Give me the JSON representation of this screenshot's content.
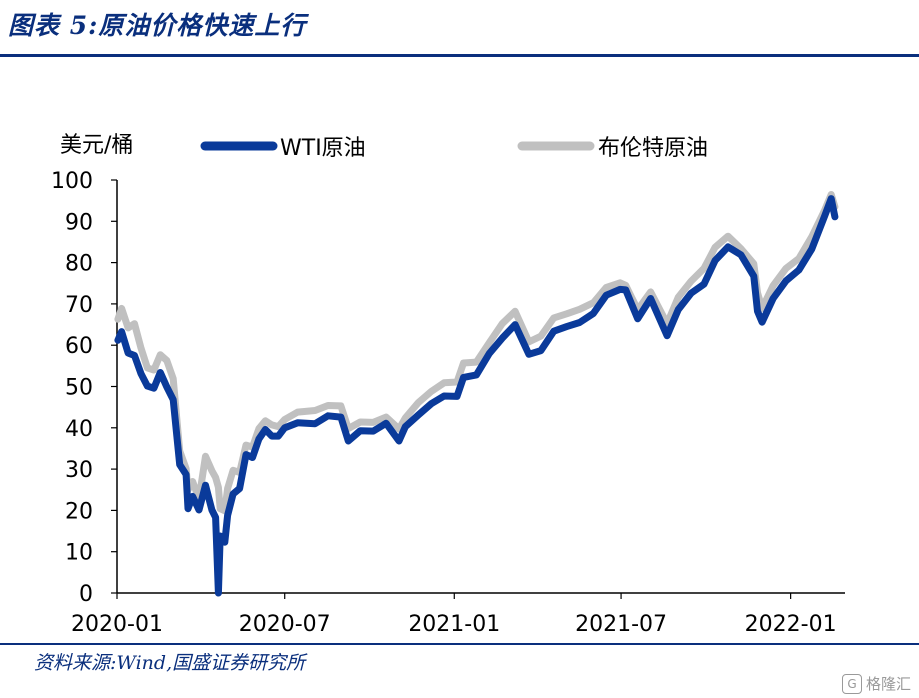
{
  "figure_title": "图表 5:原油价格快速上行",
  "source_note": "资料来源:Wind,国盛证券研究所",
  "watermark": "格隆汇",
  "chart_data": {
    "type": "line",
    "yunit": "美元/桶",
    "ylim": [
      0,
      100
    ],
    "yticks": [
      0,
      10,
      20,
      30,
      40,
      50,
      60,
      70,
      80,
      90,
      100
    ],
    "xlim": [
      "2020-01-01",
      "2022-03-01"
    ],
    "xticks": [
      "2020-01",
      "2020-07",
      "2021-01",
      "2021-07",
      "2022-01"
    ],
    "legend_position": "top",
    "grid": false,
    "series": [
      {
        "name": "WTI原油",
        "color": "#0a3a9a",
        "points": [
          [
            "2020-01-02",
            61.2
          ],
          [
            "2020-01-06",
            63.3
          ],
          [
            "2020-01-13",
            58.1
          ],
          [
            "2020-01-20",
            57.5
          ],
          [
            "2020-01-27",
            53.1
          ],
          [
            "2020-02-03",
            50.1
          ],
          [
            "2020-02-10",
            49.6
          ],
          [
            "2020-02-17",
            53.4
          ],
          [
            "2020-02-24",
            49.9
          ],
          [
            "2020-03-02",
            46.8
          ],
          [
            "2020-03-09",
            31.1
          ],
          [
            "2020-03-16",
            28.7
          ],
          [
            "2020-03-18",
            20.4
          ],
          [
            "2020-03-23",
            23.4
          ],
          [
            "2020-03-30",
            20.1
          ],
          [
            "2020-04-06",
            26.1
          ],
          [
            "2020-04-13",
            20.1
          ],
          [
            "2020-04-17",
            18.3
          ],
          [
            "2020-04-20",
            0.0
          ],
          [
            "2020-04-22",
            13.8
          ],
          [
            "2020-04-27",
            12.3
          ],
          [
            "2020-04-30",
            18.8
          ],
          [
            "2020-05-06",
            24.0
          ],
          [
            "2020-05-13",
            25.3
          ],
          [
            "2020-05-20",
            33.5
          ],
          [
            "2020-05-27",
            32.8
          ],
          [
            "2020-06-03",
            37.3
          ],
          [
            "2020-06-10",
            39.6
          ],
          [
            "2020-06-17",
            38.0
          ],
          [
            "2020-06-24",
            38.0
          ],
          [
            "2020-07-01",
            40.0
          ],
          [
            "2020-07-15",
            41.2
          ],
          [
            "2020-08-03",
            41.0
          ],
          [
            "2020-08-17",
            42.9
          ],
          [
            "2020-08-31",
            42.6
          ],
          [
            "2020-09-08",
            36.8
          ],
          [
            "2020-09-21",
            39.3
          ],
          [
            "2020-10-05",
            39.2
          ],
          [
            "2020-10-19",
            41.1
          ],
          [
            "2020-11-02",
            36.8
          ],
          [
            "2020-11-09",
            40.3
          ],
          [
            "2020-11-23",
            43.1
          ],
          [
            "2020-12-07",
            45.8
          ],
          [
            "2020-12-21",
            47.7
          ],
          [
            "2021-01-04",
            47.6
          ],
          [
            "2021-01-11",
            52.2
          ],
          [
            "2021-01-25",
            52.8
          ],
          [
            "2021-02-08",
            58.0
          ],
          [
            "2021-02-22",
            61.7
          ],
          [
            "2021-03-08",
            65.0
          ],
          [
            "2021-03-23",
            57.8
          ],
          [
            "2021-04-05",
            58.7
          ],
          [
            "2021-04-19",
            63.4
          ],
          [
            "2021-05-03",
            64.5
          ],
          [
            "2021-05-17",
            65.5
          ],
          [
            "2021-06-01",
            67.7
          ],
          [
            "2021-06-15",
            72.1
          ],
          [
            "2021-06-30",
            73.5
          ],
          [
            "2021-07-06",
            73.4
          ],
          [
            "2021-07-19",
            66.4
          ],
          [
            "2021-08-02",
            71.3
          ],
          [
            "2021-08-20",
            62.3
          ],
          [
            "2021-09-01",
            68.6
          ],
          [
            "2021-09-15",
            72.6
          ],
          [
            "2021-09-29",
            74.8
          ],
          [
            "2021-10-11",
            80.5
          ],
          [
            "2021-10-25",
            83.8
          ],
          [
            "2021-11-08",
            81.9
          ],
          [
            "2021-11-22",
            76.7
          ],
          [
            "2021-11-26",
            68.2
          ],
          [
            "2021-12-01",
            65.6
          ],
          [
            "2021-12-13",
            71.3
          ],
          [
            "2021-12-27",
            75.6
          ],
          [
            "2022-01-10",
            78.2
          ],
          [
            "2022-01-24",
            83.3
          ],
          [
            "2022-02-07",
            91.3
          ],
          [
            "2022-02-14",
            95.5
          ],
          [
            "2022-02-18",
            91.1
          ]
        ]
      },
      {
        "name": "布伦特原油",
        "color": "#c0c0c0",
        "points": [
          [
            "2020-01-02",
            66.3
          ],
          [
            "2020-01-06",
            68.9
          ],
          [
            "2020-01-13",
            64.2
          ],
          [
            "2020-01-20",
            65.2
          ],
          [
            "2020-01-27",
            59.3
          ],
          [
            "2020-02-03",
            54.5
          ],
          [
            "2020-02-10",
            54.0
          ],
          [
            "2020-02-17",
            57.7
          ],
          [
            "2020-02-24",
            56.3
          ],
          [
            "2020-03-02",
            51.9
          ],
          [
            "2020-03-09",
            34.4
          ],
          [
            "2020-03-16",
            30.1
          ],
          [
            "2020-03-18",
            25.0
          ],
          [
            "2020-03-23",
            27.0
          ],
          [
            "2020-03-30",
            22.8
          ],
          [
            "2020-04-06",
            33.1
          ],
          [
            "2020-04-13",
            29.6
          ],
          [
            "2020-04-17",
            28.0
          ],
          [
            "2020-04-20",
            25.6
          ],
          [
            "2020-04-22",
            20.4
          ],
          [
            "2020-04-27",
            19.9
          ],
          [
            "2020-04-30",
            25.3
          ],
          [
            "2020-05-06",
            29.7
          ],
          [
            "2020-05-13",
            29.2
          ],
          [
            "2020-05-20",
            35.8
          ],
          [
            "2020-05-27",
            35.3
          ],
          [
            "2020-06-03",
            39.8
          ],
          [
            "2020-06-10",
            41.7
          ],
          [
            "2020-06-17",
            40.7
          ],
          [
            "2020-06-24",
            40.3
          ],
          [
            "2020-07-01",
            42.0
          ],
          [
            "2020-07-15",
            43.8
          ],
          [
            "2020-08-03",
            44.2
          ],
          [
            "2020-08-17",
            45.4
          ],
          [
            "2020-08-31",
            45.3
          ],
          [
            "2020-09-08",
            39.8
          ],
          [
            "2020-09-21",
            41.4
          ],
          [
            "2020-10-05",
            41.3
          ],
          [
            "2020-10-19",
            42.6
          ],
          [
            "2020-11-02",
            39.7
          ],
          [
            "2020-11-09",
            42.4
          ],
          [
            "2020-11-23",
            46.1
          ],
          [
            "2020-12-07",
            48.8
          ],
          [
            "2020-12-21",
            50.9
          ],
          [
            "2021-01-04",
            51.1
          ],
          [
            "2021-01-11",
            55.7
          ],
          [
            "2021-01-25",
            55.9
          ],
          [
            "2021-02-08",
            60.6
          ],
          [
            "2021-02-22",
            65.2
          ],
          [
            "2021-03-08",
            68.2
          ],
          [
            "2021-03-23",
            60.8
          ],
          [
            "2021-04-05",
            62.2
          ],
          [
            "2021-04-19",
            66.6
          ],
          [
            "2021-05-03",
            67.6
          ],
          [
            "2021-05-17",
            68.7
          ],
          [
            "2021-06-01",
            70.3
          ],
          [
            "2021-06-15",
            74.0
          ],
          [
            "2021-06-30",
            75.1
          ],
          [
            "2021-07-06",
            74.5
          ],
          [
            "2021-07-19",
            68.6
          ],
          [
            "2021-08-02",
            72.9
          ],
          [
            "2021-08-20",
            65.2
          ],
          [
            "2021-09-01",
            71.6
          ],
          [
            "2021-09-15",
            75.5
          ],
          [
            "2021-09-29",
            78.6
          ],
          [
            "2021-10-11",
            83.7
          ],
          [
            "2021-10-25",
            86.4
          ],
          [
            "2021-11-08",
            83.4
          ],
          [
            "2021-11-22",
            79.7
          ],
          [
            "2021-11-26",
            72.7
          ],
          [
            "2021-12-01",
            68.9
          ],
          [
            "2021-12-13",
            74.4
          ],
          [
            "2021-12-27",
            78.6
          ],
          [
            "2022-01-10",
            81.0
          ],
          [
            "2022-01-24",
            86.3
          ],
          [
            "2022-02-07",
            92.7
          ],
          [
            "2022-02-14",
            96.5
          ],
          [
            "2022-02-18",
            93.5
          ]
        ]
      }
    ]
  }
}
